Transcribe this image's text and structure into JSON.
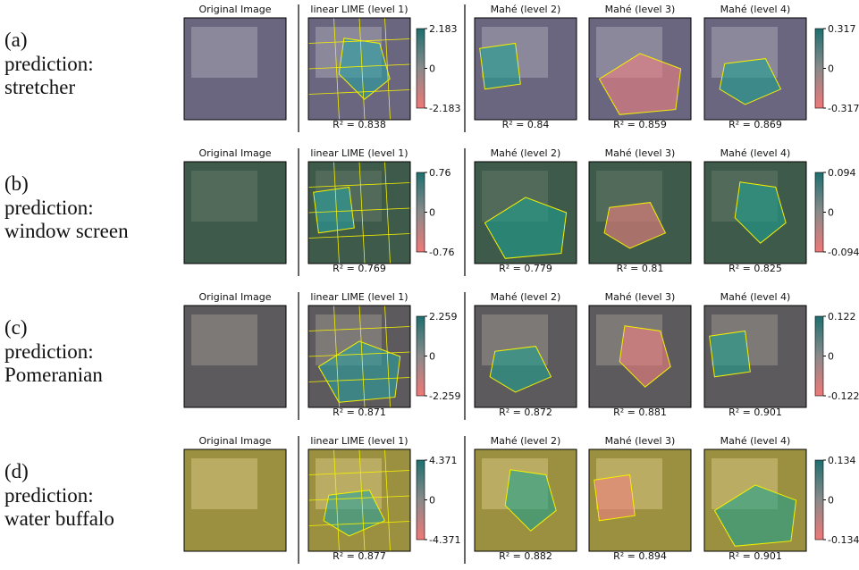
{
  "rows": [
    {
      "label": "(a)",
      "prediction": [
        "prediction:",
        "stretcher"
      ],
      "panels": [
        {
          "title": "Original Image"
        },
        {
          "title": "linear LIME (level 1)",
          "r2": "R² = 0.838"
        },
        {
          "title": "Mahé (level 2)",
          "r2": "R² = 0.84"
        },
        {
          "title": "Mahé (level 3)",
          "r2": "R² = 0.859"
        },
        {
          "title": "Mahé (level 4)",
          "r2": "R² = 0.869"
        }
      ],
      "colorbars": [
        {
          "ticks": [
            2.183,
            0,
            -2.183
          ]
        },
        {
          "ticks": [
            0.317,
            0,
            -0.317
          ]
        }
      ]
    },
    {
      "label": "(b)",
      "prediction": [
        "prediction:",
        "window screen"
      ],
      "panels": [
        {
          "title": "Original Image"
        },
        {
          "title": "linear LIME (level 1)",
          "r2": "R² = 0.769"
        },
        {
          "title": "Mahé (level 2)",
          "r2": "R² = 0.779"
        },
        {
          "title": "Mahé (level 3)",
          "r2": "R² = 0.81"
        },
        {
          "title": "Mahé (level 4)",
          "r2": "R² = 0.825"
        }
      ],
      "colorbars": [
        {
          "ticks": [
            0.76,
            0,
            -0.76
          ]
        },
        {
          "ticks": [
            0.094,
            0,
            -0.094
          ]
        }
      ]
    },
    {
      "label": "(c)",
      "prediction": [
        "prediction:",
        "Pomeranian"
      ],
      "panels": [
        {
          "title": "Original Image"
        },
        {
          "title": "linear LIME (level 1)",
          "r2": "R² = 0.871"
        },
        {
          "title": "Mahé (level 2)",
          "r2": "R² = 0.872"
        },
        {
          "title": "Mahé (level 3)",
          "r2": "R² = 0.881"
        },
        {
          "title": "Mahé (level 4)",
          "r2": "R² = 0.901"
        }
      ],
      "colorbars": [
        {
          "ticks": [
            2.259,
            0,
            -2.259
          ]
        },
        {
          "ticks": [
            0.122,
            0,
            -0.122
          ]
        }
      ]
    },
    {
      "label": "(d)",
      "prediction": [
        "prediction:",
        "water buffalo"
      ],
      "panels": [
        {
          "title": "Original Image"
        },
        {
          "title": "linear LIME (level 1)",
          "r2": "R² = 0.877"
        },
        {
          "title": "Mahé (level 2)",
          "r2": "R² = 0.882"
        },
        {
          "title": "Mahé (level 3)",
          "r2": "R² = 0.894"
        },
        {
          "title": "Mahé (level 4)",
          "r2": "R² = 0.901"
        }
      ],
      "colorbars": [
        {
          "ticks": [
            4.371,
            0,
            -4.371
          ]
        },
        {
          "ticks": [
            0.134,
            0,
            -0.134
          ]
        }
      ]
    }
  ]
}
